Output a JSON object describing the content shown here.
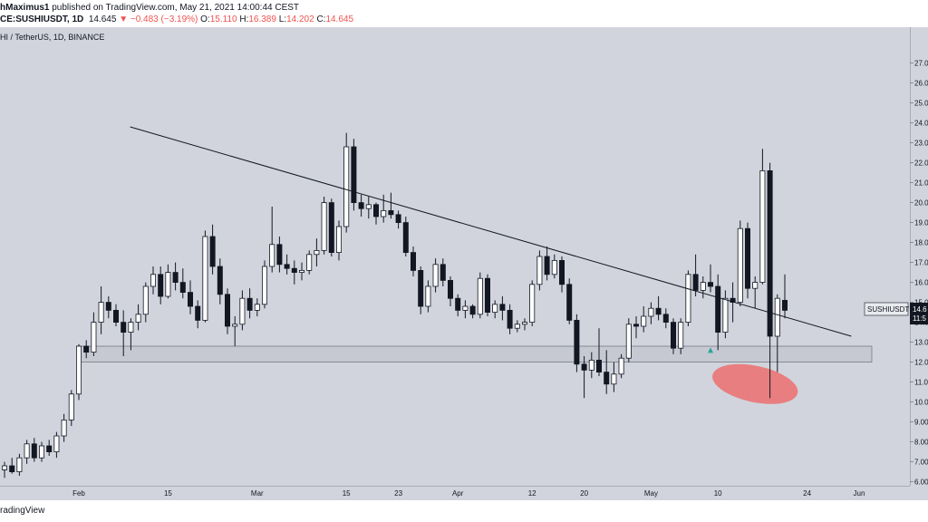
{
  "header": {
    "author": "hMaximus1",
    "published": "published on TradingView.com, May 21, 2021 14:00:44 CEST",
    "symbol": "CE:SUSHIUSDT, 1D",
    "last": "14.645",
    "arrow": "▼",
    "change": "−0.483 (−3.19%)",
    "o_label": "O:",
    "o_value": "15.110",
    "h_label": "H:",
    "h_value": "16.389",
    "l_label": "L:",
    "l_value": "14.202",
    "c_label": "C:",
    "c_value": "14.645"
  },
  "symbol_line": "HI / TetherUS, 1D, BINANCE",
  "footer": "radingView",
  "price_tag": {
    "symbol": "SUSHIUSDT",
    "value": "14.6",
    "countdown": "11:5"
  },
  "colors": {
    "background": "#d1d4dc",
    "band": "#c6c9d2",
    "ellipse": "#ec6f6f",
    "marker": "#26a69a",
    "candle_up": "#ffffff",
    "candle_down": "#131722"
  },
  "chart_data": {
    "type": "candlestick",
    "symbol": "SUSHIUSDT",
    "timeframe": "1D",
    "exchange": "BINANCE",
    "y_axis": {
      "unit": "USDT",
      "range": [
        5.8,
        28.8
      ],
      "ticks": [
        "6.00",
        "7.00",
        "8.00",
        "9.00",
        "10.00",
        "11.00",
        "12.00",
        "13.00",
        "14.00",
        "15.00",
        "16.00",
        "17.00",
        "18.00",
        "19.00",
        "20.00",
        "21.00",
        "22.00",
        "23.00",
        "24.00",
        "25.00",
        "26.00",
        "27.00"
      ]
    },
    "x_axis": {
      "ticks": [
        "Feb",
        "15",
        "Mar",
        "15",
        "23",
        "Apr",
        "12",
        "20",
        "May",
        "10",
        "24",
        "Jun"
      ]
    },
    "support_zone": [
      12.0,
      12.8
    ],
    "resistance_trendline": {
      "from": [
        13,
        23.8
      ],
      "to": [
        112,
        13.3
      ]
    },
    "marked_area_center": [
      101,
      10.9
    ],
    "up_arrow_at": [
      130,
      12.6
    ],
    "candles": [
      [
        0,
        6.6,
        7.0,
        6.2,
        6.8
      ],
      [
        1,
        6.8,
        7.2,
        6.4,
        6.5
      ],
      [
        2,
        6.5,
        7.4,
        6.3,
        7.2
      ],
      [
        3,
        7.2,
        8.1,
        6.9,
        7.9
      ],
      [
        4,
        7.9,
        8.2,
        7.0,
        7.2
      ],
      [
        5,
        7.2,
        8.0,
        7.0,
        7.8
      ],
      [
        6,
        7.8,
        8.1,
        7.3,
        7.5
      ],
      [
        7,
        7.5,
        8.5,
        7.2,
        8.3
      ],
      [
        8,
        8.3,
        9.4,
        8.0,
        9.1
      ],
      [
        9,
        9.1,
        10.6,
        8.8,
        10.4
      ],
      [
        10,
        10.4,
        12.9,
        10.1,
        12.8
      ],
      [
        11,
        12.8,
        13.1,
        12.2,
        12.5
      ],
      [
        12,
        12.5,
        14.5,
        12.3,
        14.0
      ],
      [
        13,
        14.0,
        15.8,
        13.4,
        15.0
      ],
      [
        14,
        15.0,
        15.3,
        14.2,
        14.6
      ],
      [
        15,
        14.6,
        14.9,
        13.8,
        14.0
      ],
      [
        16,
        14.0,
        14.6,
        12.3,
        13.5
      ],
      [
        17,
        13.5,
        14.2,
        12.6,
        14.0
      ],
      [
        18,
        14.0,
        14.9,
        13.6,
        14.4
      ],
      [
        19,
        14.4,
        16.0,
        14.0,
        15.8
      ],
      [
        20,
        15.8,
        16.8,
        15.4,
        16.4
      ],
      [
        21,
        16.4,
        16.8,
        14.9,
        15.3
      ],
      [
        22,
        15.3,
        16.9,
        15.2,
        16.5
      ],
      [
        23,
        16.5,
        17.0,
        15.6,
        16.0
      ],
      [
        24,
        16.0,
        16.7,
        15.2,
        15.5
      ],
      [
        25,
        15.5,
        16.1,
        14.4,
        14.8
      ],
      [
        26,
        14.8,
        15.1,
        13.7,
        14.1
      ],
      [
        27,
        14.1,
        18.6,
        14.0,
        18.3
      ],
      [
        28,
        18.3,
        18.9,
        16.4,
        16.8
      ],
      [
        29,
        16.8,
        17.2,
        14.9,
        15.4
      ],
      [
        30,
        15.4,
        15.7,
        13.4,
        13.8
      ],
      [
        31,
        13.8,
        14.3,
        12.8,
        13.9
      ],
      [
        32,
        13.9,
        15.6,
        13.6,
        15.2
      ],
      [
        33,
        15.2,
        15.7,
        14.2,
        14.6
      ],
      [
        34,
        14.6,
        15.2,
        14.3,
        14.9
      ],
      [
        35,
        14.9,
        17.1,
        14.7,
        16.8
      ],
      [
        36,
        16.8,
        19.8,
        16.5,
        17.9
      ],
      [
        37,
        17.9,
        18.3,
        16.5,
        16.9
      ],
      [
        38,
        16.9,
        17.4,
        16.4,
        16.7
      ],
      [
        39,
        16.7,
        17.1,
        15.9,
        16.5
      ],
      [
        40,
        16.5,
        17.0,
        16.1,
        16.6
      ],
      [
        41,
        16.6,
        17.6,
        16.4,
        17.4
      ],
      [
        42,
        17.4,
        18.2,
        16.8,
        17.6
      ],
      [
        43,
        17.6,
        20.3,
        17.4,
        20.0
      ],
      [
        44,
        20.0,
        20.2,
        17.3,
        17.5
      ],
      [
        45,
        17.5,
        19.1,
        17.1,
        18.8
      ],
      [
        46,
        18.8,
        23.5,
        18.5,
        22.8
      ],
      [
        47,
        22.8,
        23.2,
        19.6,
        20.0
      ],
      [
        48,
        20.0,
        20.4,
        19.3,
        19.7
      ],
      [
        49,
        19.7,
        20.3,
        19.2,
        19.9
      ],
      [
        50,
        19.9,
        20.0,
        18.9,
        19.3
      ],
      [
        51,
        19.3,
        20.4,
        19.0,
        19.6
      ],
      [
        52,
        19.6,
        20.5,
        19.2,
        19.4
      ],
      [
        53,
        19.4,
        19.6,
        18.7,
        19.0
      ],
      [
        54,
        19.0,
        19.3,
        17.3,
        17.5
      ],
      [
        55,
        17.5,
        17.8,
        16.3,
        16.6
      ],
      [
        56,
        16.6,
        16.8,
        14.4,
        14.8
      ],
      [
        57,
        14.8,
        16.1,
        14.5,
        15.8
      ],
      [
        58,
        15.8,
        17.2,
        15.5,
        16.9
      ],
      [
        59,
        16.9,
        17.2,
        15.8,
        16.1
      ],
      [
        60,
        16.1,
        16.3,
        14.8,
        15.2
      ],
      [
        61,
        15.2,
        15.4,
        14.3,
        14.6
      ],
      [
        62,
        14.6,
        15.1,
        14.2,
        14.8
      ],
      [
        63,
        14.8,
        14.9,
        14.2,
        14.4
      ],
      [
        64,
        14.4,
        16.5,
        14.2,
        16.2
      ],
      [
        65,
        16.2,
        16.4,
        14.3,
        14.5
      ],
      [
        66,
        14.5,
        15.1,
        14.2,
        14.9
      ],
      [
        67,
        14.9,
        15.3,
        14.1,
        14.6
      ],
      [
        68,
        14.6,
        14.9,
        13.4,
        13.7
      ],
      [
        69,
        13.7,
        14.1,
        13.5,
        13.9
      ],
      [
        70,
        13.9,
        14.2,
        13.6,
        14.0
      ],
      [
        71,
        14.0,
        16.1,
        13.8,
        15.9
      ],
      [
        72,
        15.9,
        17.6,
        15.6,
        17.3
      ],
      [
        73,
        17.3,
        17.8,
        16.1,
        16.4
      ],
      [
        74,
        16.4,
        17.4,
        16.2,
        17.1
      ],
      [
        75,
        17.1,
        17.3,
        15.5,
        15.9
      ],
      [
        76,
        15.9,
        16.2,
        13.9,
        14.1
      ],
      [
        77,
        14.1,
        14.4,
        11.5,
        11.9
      ],
      [
        78,
        11.9,
        12.3,
        10.2,
        11.6
      ],
      [
        79,
        11.6,
        12.5,
        11.2,
        12.1
      ],
      [
        80,
        12.1,
        13.7,
        11.3,
        11.5
      ],
      [
        81,
        11.5,
        12.6,
        10.4,
        10.9
      ],
      [
        82,
        10.9,
        12.0,
        10.5,
        11.4
      ],
      [
        83,
        11.4,
        12.4,
        11.2,
        12.2
      ],
      [
        84,
        12.2,
        14.2,
        12.0,
        13.9
      ],
      [
        85,
        13.9,
        14.3,
        13.2,
        13.8
      ],
      [
        86,
        13.8,
        14.8,
        13.5,
        14.3
      ],
      [
        87,
        14.3,
        15.0,
        13.9,
        14.7
      ],
      [
        88,
        14.7,
        15.3,
        14.1,
        14.4
      ],
      [
        89,
        14.4,
        14.7,
        13.7,
        14.0
      ],
      [
        90,
        14.0,
        14.2,
        12.4,
        12.7
      ],
      [
        91,
        12.7,
        14.2,
        12.4,
        14.0
      ],
      [
        92,
        14.0,
        16.6,
        13.8,
        16.4
      ],
      [
        93,
        16.4,
        17.4,
        15.3,
        15.6
      ],
      [
        94,
        15.6,
        16.3,
        15.2,
        16.0
      ],
      [
        95,
        16.0,
        16.9,
        15.5,
        15.8
      ],
      [
        96,
        15.8,
        16.4,
        12.6,
        13.5
      ],
      [
        97,
        13.5,
        15.6,
        13.2,
        15.2
      ],
      [
        98,
        15.2,
        16.0,
        14.0,
        15.0
      ],
      [
        99,
        15.0,
        19.1,
        14.8,
        18.7
      ],
      [
        100,
        18.7,
        19.0,
        15.2,
        15.7
      ],
      [
        101,
        15.7,
        16.3,
        14.7,
        16.0
      ],
      [
        102,
        16.0,
        22.7,
        15.9,
        21.6
      ],
      [
        103,
        21.6,
        22.0,
        10.2,
        13.3
      ],
      [
        104,
        13.3,
        15.4,
        11.5,
        15.2
      ],
      [
        105,
        15.1,
        16.4,
        14.2,
        14.6
      ]
    ]
  }
}
